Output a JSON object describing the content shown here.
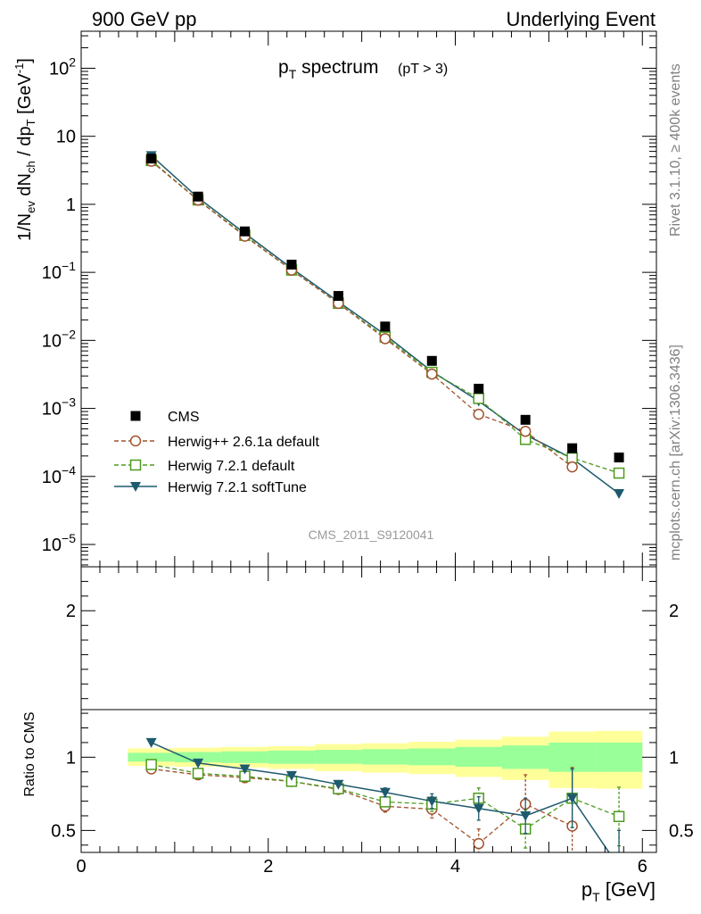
{
  "header": {
    "left": "900 GeV pp",
    "right": "Underlying Event"
  },
  "plot_title": {
    "main": "p",
    "main_sub": "T",
    "main_rest": " spectrum",
    "cut": "(pT >  3)"
  },
  "watermark": "CMS_2011_S9120041",
  "side_text": {
    "rivet": "Rivet 3.1.10, ≥ 400k events",
    "mcplots": "mcplots.cern.ch [arXiv:1306.3436]"
  },
  "main_ylabel": {
    "a": "1/N",
    "a_sub": "ev",
    "b": " dN",
    "b_sub": "ch",
    "c": " / dp",
    "c_sub": "T",
    "d": " [GeV",
    "d_sup": "-1",
    "e": "]"
  },
  "ratio_ylabel": "Ratio to CMS",
  "xlabel": {
    "p": "p",
    "sub": "T",
    "unit": " [GeV]"
  },
  "legend": [
    {
      "label": "CMS"
    },
    {
      "label": "Herwig++ 2.6.1a default"
    },
    {
      "label": "Herwig 7.2.1 default"
    },
    {
      "label": "Herwig 7.2.1 softTune"
    }
  ],
  "main_y_ticks": [
    {
      "value": 100,
      "base": "10",
      "exp": "2"
    },
    {
      "value": 10,
      "base": "10",
      "exp": ""
    },
    {
      "value": 1,
      "base": "1",
      "exp": ""
    },
    {
      "value": 0.1,
      "base": "10",
      "exp": "−1"
    },
    {
      "value": 0.01,
      "base": "10",
      "exp": "−2"
    },
    {
      "value": 0.001,
      "base": "10",
      "exp": "−3"
    },
    {
      "value": 0.0001,
      "base": "10",
      "exp": "−4"
    },
    {
      "value": 1e-05,
      "base": "10",
      "exp": "−5"
    }
  ],
  "ratio_y_ticks": [
    {
      "value": 2,
      "label": "2"
    },
    {
      "value": 1,
      "label": "1"
    },
    {
      "value": 0.5,
      "label": "0.5"
    }
  ],
  "x_ticks": [
    {
      "value": 0,
      "label": "0"
    },
    {
      "value": 2,
      "label": "2"
    },
    {
      "value": 4,
      "label": "4"
    },
    {
      "value": 6,
      "label": "6"
    }
  ],
  "chart_data": {
    "type": "scatter",
    "x_range": [
      0,
      6.15
    ],
    "main_y_scale": "log",
    "main_y_range": [
      4.7e-06,
      350
    ],
    "ratio_y_range": [
      0.35,
      2.3
    ],
    "grid": false,
    "legend_position": "bottom-left",
    "x": [
      0.75,
      1.25,
      1.75,
      2.25,
      2.75,
      3.25,
      3.75,
      4.25,
      4.75,
      5.25,
      5.75
    ],
    "series": [
      {
        "name": "CMS",
        "color": "#000000",
        "marker": "square-filled",
        "line": "none",
        "values": [
          4.7,
          1.3,
          0.4,
          0.13,
          0.045,
          0.016,
          0.005,
          0.00195,
          0.00068,
          0.00026,
          0.00019
        ]
      },
      {
        "name": "Herwig++ 2.6.1a default",
        "color": "#a0522d",
        "marker": "circle-open",
        "line": "dashed",
        "values": [
          4.3,
          1.15,
          0.34,
          0.108,
          0.035,
          0.0106,
          0.0032,
          0.00082,
          0.00046,
          0.000138,
          null
        ],
        "ratio": [
          0.92,
          0.88,
          0.86,
          0.835,
          0.78,
          0.665,
          0.645,
          0.41,
          0.68,
          0.53,
          null
        ],
        "ratio_err": [
          0.01,
          0.01,
          0.01,
          0.015,
          0.02,
          0.04,
          0.06,
          0.1,
          0.2,
          0.4,
          null
        ]
      },
      {
        "name": "Herwig 7.2.1 default",
        "color": "#4d9a1e",
        "marker": "square-open",
        "line": "dashed",
        "values": [
          4.4,
          1.16,
          0.35,
          0.108,
          0.035,
          0.0112,
          0.0034,
          0.0014,
          0.00035,
          0.000187,
          0.000112
        ],
        "ratio": [
          0.95,
          0.89,
          0.87,
          0.835,
          0.785,
          0.695,
          0.68,
          0.72,
          0.51,
          0.72,
          0.595
        ],
        "ratio_err": [
          0.01,
          0.01,
          0.01,
          0.01,
          0.02,
          0.03,
          0.05,
          0.07,
          0.13,
          0.2,
          0.2
        ]
      },
      {
        "name": "Herwig 7.2.1 softTune",
        "color": "#1e5a6e",
        "marker": "triangle-down-filled",
        "line": "solid",
        "values": [
          5.2,
          1.25,
          0.375,
          0.115,
          0.037,
          0.0121,
          0.0035,
          0.00128,
          0.00041,
          0.000184,
          5.6e-05
        ],
        "ratio": [
          1.1,
          0.96,
          0.92,
          0.875,
          0.815,
          0.76,
          0.7,
          0.65,
          0.6,
          0.72,
          0.25
        ],
        "ratio_err": [
          0.01,
          0.01,
          0.01,
          0.01,
          0.015,
          0.03,
          0.05,
          0.08,
          0.12,
          0.2,
          0.25
        ]
      }
    ],
    "ratio_bands": {
      "edges": [
        0.5,
        1.0,
        1.5,
        2.0,
        2.5,
        3.0,
        3.5,
        4.0,
        4.5,
        5.0,
        5.5,
        6.0
      ],
      "green_lo": [
        0.97,
        0.965,
        0.96,
        0.955,
        0.955,
        0.95,
        0.945,
        0.935,
        0.92,
        0.9,
        0.9
      ],
      "green_hi": [
        1.03,
        1.035,
        1.04,
        1.045,
        1.05,
        1.055,
        1.06,
        1.07,
        1.08,
        1.1,
        1.1
      ],
      "yellow_lo": [
        0.94,
        0.935,
        0.93,
        0.92,
        0.905,
        0.895,
        0.885,
        0.865,
        0.845,
        0.79,
        0.785
      ],
      "yellow_hi": [
        1.06,
        1.065,
        1.07,
        1.075,
        1.09,
        1.095,
        1.105,
        1.12,
        1.14,
        1.175,
        1.18
      ]
    }
  }
}
